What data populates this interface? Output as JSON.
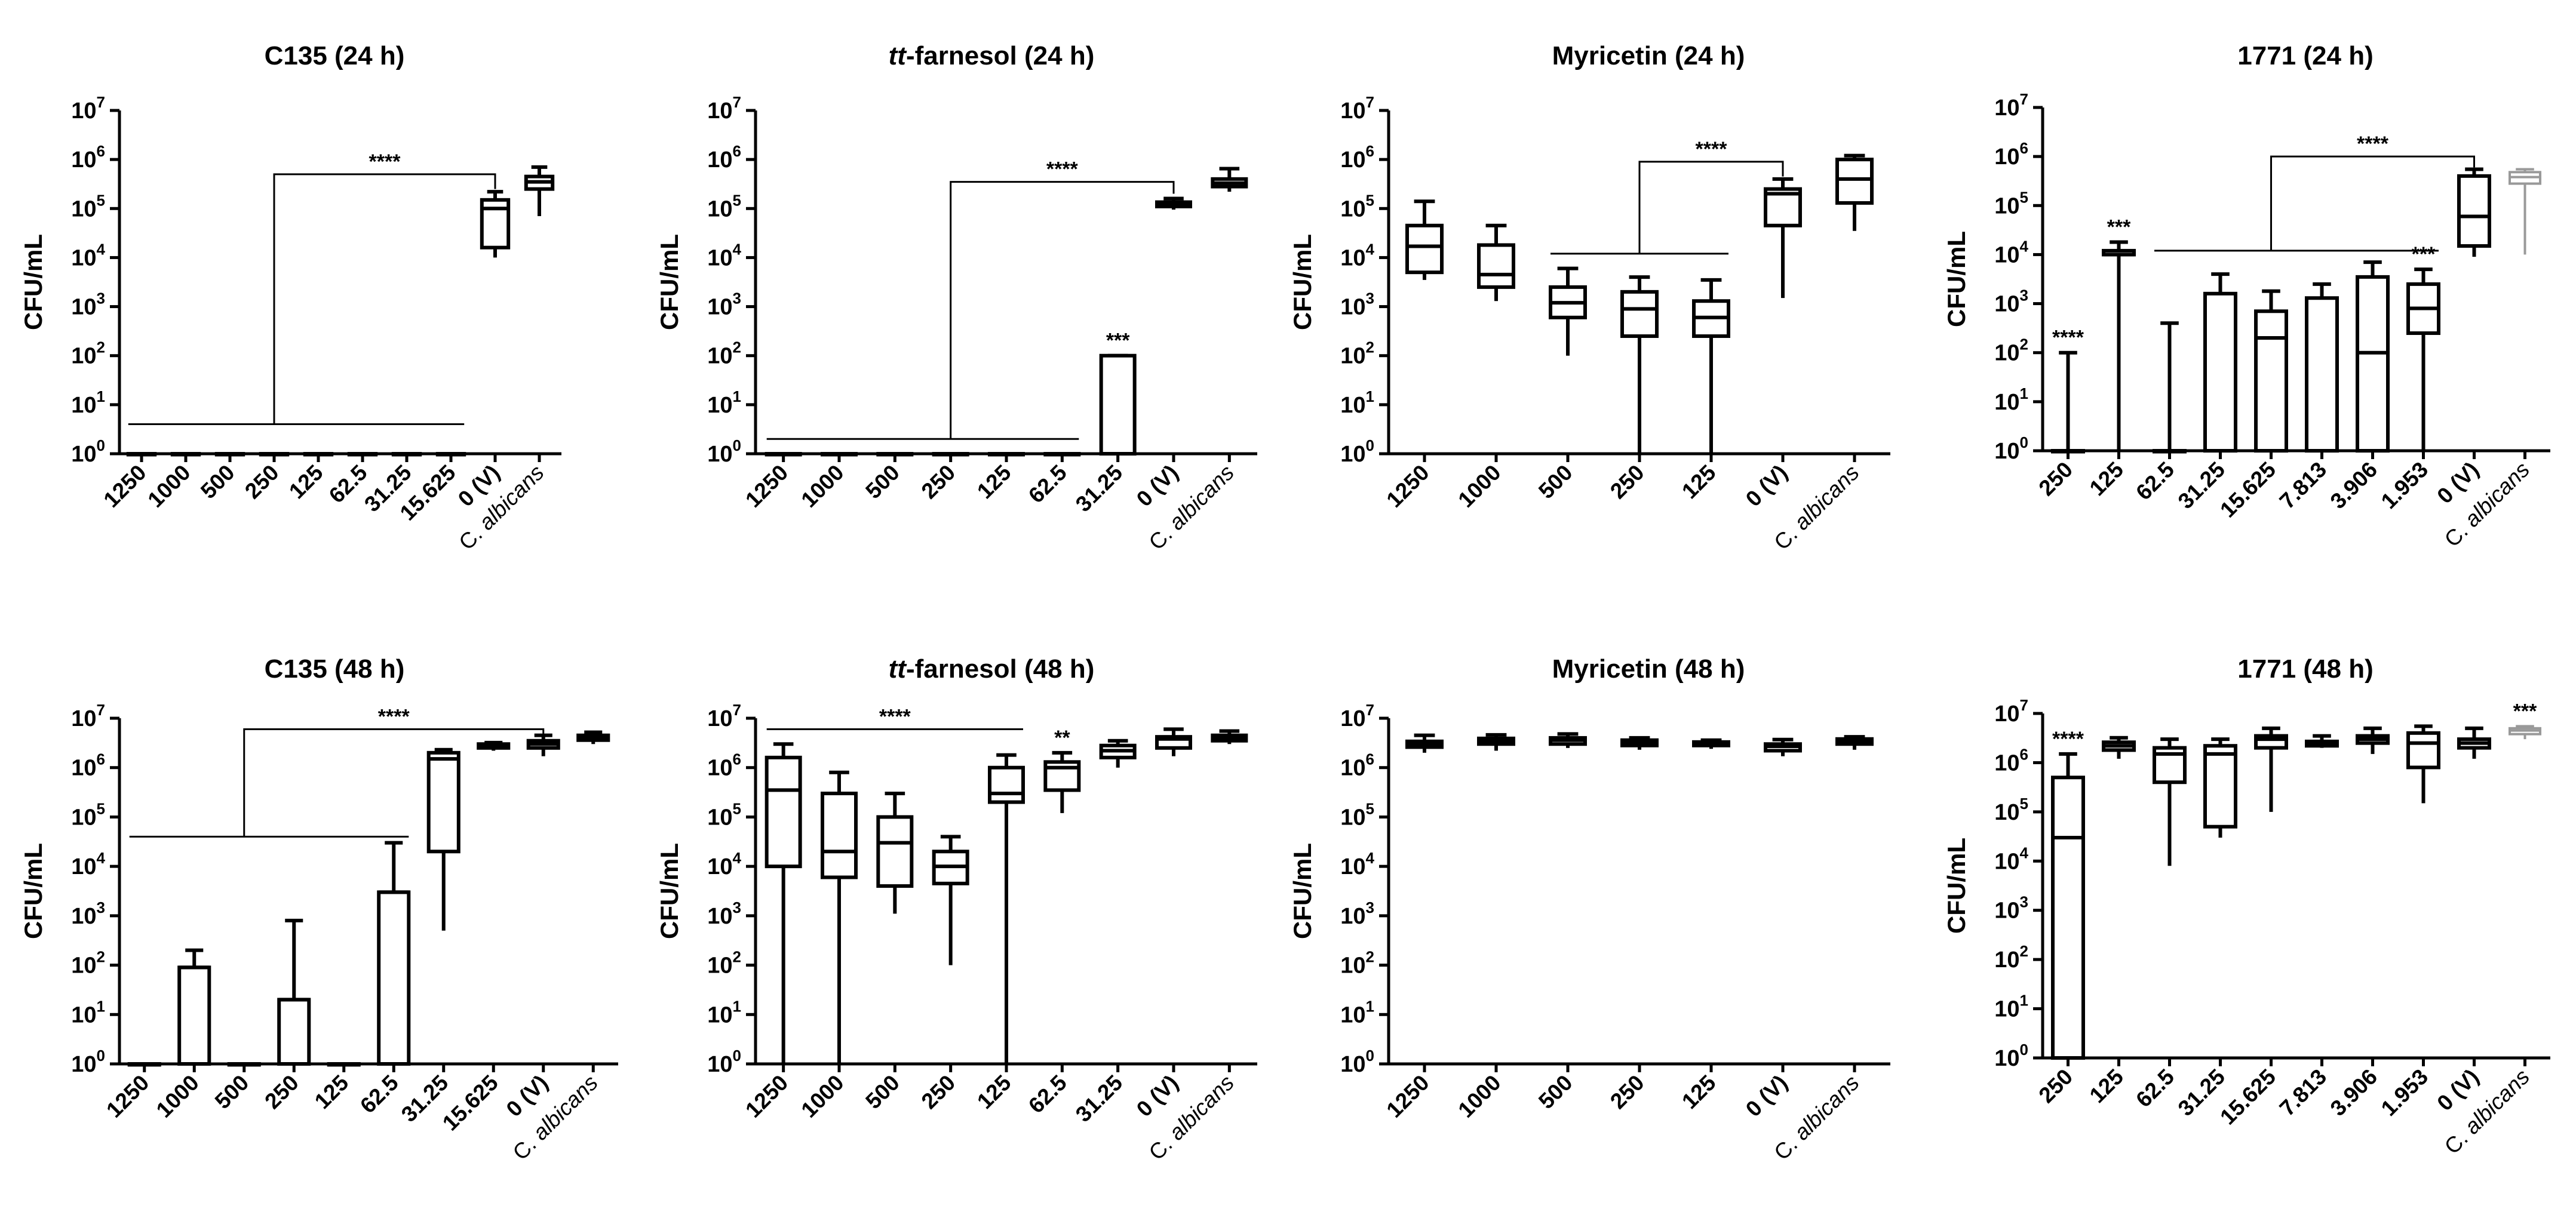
{
  "figure": {
    "y_axis_label": "CFU/mL",
    "y_tick_base": "10",
    "y_tick_exponents": [
      "0",
      "1",
      "2",
      "3",
      "4",
      "5",
      "6",
      "7"
    ],
    "colors": {
      "ink": "#000000",
      "control_alt": "#999999"
    }
  },
  "chart_data": [
    {
      "type": "box",
      "title_prefix": "",
      "title_italic": "",
      "title_suffix": "C135 (24 h)",
      "ylabel": "CFU/mL",
      "yscale": "log10",
      "ylim": [
        1,
        10000000
      ],
      "categories": [
        "1250",
        "1000",
        "500",
        "250",
        "125",
        "62.5",
        "31.25",
        "15.625",
        "0 (V)",
        "C. albicans"
      ],
      "boxes": [
        {
          "min": 1,
          "q1": 1,
          "med": 1,
          "q3": 1,
          "max": 1
        },
        {
          "min": 1,
          "q1": 1,
          "med": 1,
          "q3": 1,
          "max": 1
        },
        {
          "min": 1,
          "q1": 1,
          "med": 1,
          "q3": 1,
          "max": 1
        },
        {
          "min": 1,
          "q1": 1,
          "med": 1,
          "q3": 1,
          "max": 1
        },
        {
          "min": 1,
          "q1": 1,
          "med": 1,
          "q3": 1,
          "max": 1
        },
        {
          "min": 1,
          "q1": 1,
          "med": 1,
          "q3": 1,
          "max": 1
        },
        {
          "min": 1,
          "q1": 1,
          "med": 1,
          "q3": 1,
          "max": 1
        },
        {
          "min": 1,
          "q1": 1,
          "med": 1,
          "q3": 1,
          "max": 1
        },
        {
          "min": 10000,
          "q1": 16000,
          "med": 100000,
          "q3": 150000,
          "max": 220000
        },
        {
          "min": 70000,
          "q1": 250000,
          "med": 350000,
          "q3": 450000,
          "max": 700000
        }
      ],
      "annotations": [
        {
          "type": "span",
          "from": 0,
          "to": 7,
          "y": 4
        },
        {
          "type": "bracket",
          "anchor": 3,
          "anchor_y": 4,
          "target": 8,
          "y": 500000,
          "target_y": 250000,
          "label": "****"
        }
      ]
    },
    {
      "type": "box",
      "title_prefix": "",
      "title_italic": "tt",
      "title_suffix": "-farnesol (24 h)",
      "ylabel": "CFU/mL",
      "yscale": "log10",
      "ylim": [
        1,
        10000000
      ],
      "categories": [
        "1250",
        "1000",
        "500",
        "250",
        "125",
        "62.5",
        "31.25",
        "0 (V)",
        "C. albicans"
      ],
      "boxes": [
        {
          "min": 1,
          "q1": 1,
          "med": 1,
          "q3": 1,
          "max": 1
        },
        {
          "min": 1,
          "q1": 1,
          "med": 1,
          "q3": 1,
          "max": 1
        },
        {
          "min": 1,
          "q1": 1,
          "med": 1,
          "q3": 1,
          "max": 1
        },
        {
          "min": 1,
          "q1": 1,
          "med": 1,
          "q3": 1,
          "max": 1
        },
        {
          "min": 1,
          "q1": 1,
          "med": 1,
          "q3": 1,
          "max": 1
        },
        {
          "min": 1,
          "q1": 1,
          "med": 1,
          "q3": 1,
          "max": 1
        },
        {
          "min": 1,
          "q1": 1,
          "med": 1,
          "q3": 100,
          "max": 100,
          "label": "***"
        },
        {
          "min": 95000,
          "q1": 110000,
          "med": 120000,
          "q3": 135000,
          "max": 160000
        },
        {
          "min": 220000,
          "q1": 280000,
          "med": 330000,
          "q3": 400000,
          "max": 650000
        }
      ],
      "annotations": [
        {
          "type": "span",
          "from": 0,
          "to": 5,
          "y": 2
        },
        {
          "type": "bracket",
          "anchor": 3,
          "anchor_y": 2,
          "target": 7,
          "y": 350000,
          "target_y": 200000,
          "label": "****"
        }
      ]
    },
    {
      "type": "box",
      "title_prefix": "",
      "title_italic": "",
      "title_suffix": "Myricetin (24 h)",
      "ylabel": "CFU/mL",
      "yscale": "log10",
      "ylim": [
        1,
        10000000
      ],
      "categories": [
        "1250",
        "1000",
        "500",
        "250",
        "125",
        "0 (V)",
        "C. albicans"
      ],
      "boxes": [
        {
          "min": 3500,
          "q1": 5000,
          "med": 17000,
          "q3": 45000,
          "max": 140000
        },
        {
          "min": 1300,
          "q1": 2500,
          "med": 4500,
          "q3": 18000,
          "max": 45000
        },
        {
          "min": 100,
          "q1": 600,
          "med": 1200,
          "q3": 2500,
          "max": 6000
        },
        {
          "min": 1,
          "q1": 250,
          "med": 900,
          "q3": 2000,
          "max": 4000
        },
        {
          "min": 1,
          "q1": 250,
          "med": 600,
          "q3": 1300,
          "max": 3500
        },
        {
          "min": 1500,
          "q1": 45000,
          "med": 200000,
          "q3": 250000,
          "max": 400000
        },
        {
          "min": 35000,
          "q1": 130000,
          "med": 400000,
          "q3": 1000000,
          "max": 1200000
        }
      ],
      "annotations": [
        {
          "type": "span",
          "from": 2,
          "to": 4,
          "y": 12000
        },
        {
          "type": "bracket",
          "anchor": 3,
          "anchor_y": 12000,
          "target": 5,
          "y": 900000,
          "target_y": 450000,
          "label": "****"
        }
      ]
    },
    {
      "type": "box",
      "title_prefix": "",
      "title_italic": "",
      "title_suffix": "1771 (24 h)",
      "ylabel": "CFU/mL",
      "yscale": "log10",
      "ylim": [
        1,
        10000000
      ],
      "categories": [
        "250",
        "125",
        "62.5",
        "31.25",
        "15.625",
        "7.813",
        "3.906",
        "1.953",
        "0 (V)",
        "C. albicans"
      ],
      "boxes": [
        {
          "min": 1,
          "q1": 1,
          "med": 1,
          "q3": 1,
          "max": 100,
          "label": "****"
        },
        {
          "min": 1,
          "q1": 10000,
          "med": 10000,
          "q3": 12000,
          "max": 18000,
          "label": "***"
        },
        {
          "min": 1,
          "q1": 1,
          "med": 1,
          "q3": 1,
          "max": 400
        },
        {
          "min": 1,
          "q1": 1,
          "med": 1,
          "q3": 1600,
          "max": 4000
        },
        {
          "min": 1,
          "q1": 1,
          "med": 200,
          "q3": 700,
          "max": 1800
        },
        {
          "min": 1,
          "q1": 1,
          "med": 1,
          "q3": 1300,
          "max": 2500
        },
        {
          "min": 1,
          "q1": 1,
          "med": 100,
          "q3": 3500,
          "max": 7000
        },
        {
          "min": 1,
          "q1": 250,
          "med": 800,
          "q3": 2500,
          "max": 5000,
          "label": "***"
        },
        {
          "min": 9000,
          "q1": 15000,
          "med": 60000,
          "q3": 400000,
          "max": 550000
        },
        {
          "min": 10000,
          "q1": 280000,
          "med": 380000,
          "q3": 480000,
          "max": 550000,
          "color": "gray"
        }
      ],
      "annotations": [
        {
          "type": "span",
          "from": 2,
          "to": 7,
          "y": 12000
        },
        {
          "type": "bracket",
          "anchor": 4,
          "anchor_y": 12000,
          "target": 8,
          "y": 1000000,
          "target_y": 600000,
          "label": "****"
        }
      ]
    },
    {
      "type": "box",
      "title_prefix": "",
      "title_italic": "",
      "title_suffix": "C135 (48 h)",
      "ylabel": "CFU/mL",
      "yscale": "log10",
      "ylim": [
        1,
        10000000
      ],
      "categories": [
        "1250",
        "1000",
        "500",
        "250",
        "125",
        "62.5",
        "31.25",
        "15.625",
        "0 (V)",
        "C. albicans"
      ],
      "boxes": [
        {
          "min": 1,
          "q1": 1,
          "med": 1,
          "q3": 1,
          "max": 1
        },
        {
          "min": 1,
          "q1": 1,
          "med": 90,
          "q3": 90,
          "max": 200
        },
        {
          "min": 1,
          "q1": 1,
          "med": 1,
          "q3": 1,
          "max": 1
        },
        {
          "min": 1,
          "q1": 1,
          "med": 20,
          "q3": 20,
          "max": 800
        },
        {
          "min": 1,
          "q1": 1,
          "med": 1,
          "q3": 1,
          "max": 1
        },
        {
          "min": 1,
          "q1": 1,
          "med": 3000,
          "q3": 3000,
          "max": 30000
        },
        {
          "min": 500,
          "q1": 20000,
          "med": 1500000,
          "q3": 2000000,
          "max": 2300000
        },
        {
          "min": 2200000,
          "q1": 2500000,
          "med": 2700000,
          "q3": 3000000,
          "max": 3200000
        },
        {
          "min": 1700000,
          "q1": 2500000,
          "med": 3000000,
          "q3": 3500000,
          "max": 4500000
        },
        {
          "min": 3000000,
          "q1": 3600000,
          "med": 4000000,
          "q3": 4500000,
          "max": 5200000
        }
      ],
      "annotations": [
        {
          "type": "span",
          "from": 0,
          "to": 5,
          "y": 40000
        },
        {
          "type": "bracket",
          "anchor": 2,
          "anchor_y": 40000,
          "target": 8,
          "y": 6000000,
          "target_y": 4000000,
          "label": "****"
        }
      ]
    },
    {
      "type": "box",
      "title_prefix": "",
      "title_italic": "tt",
      "title_suffix": "-farnesol (48 h)",
      "ylabel": "CFU/mL",
      "yscale": "log10",
      "ylim": [
        1,
        10000000
      ],
      "categories": [
        "1250",
        "1000",
        "500",
        "250",
        "125",
        "62.5",
        "31.25",
        "0 (V)",
        "C. albicans"
      ],
      "boxes": [
        {
          "min": 1,
          "q1": 10000,
          "med": 350000,
          "q3": 1600000,
          "max": 3000000
        },
        {
          "min": 1,
          "q1": 6000,
          "med": 20000,
          "q3": 300000,
          "max": 800000
        },
        {
          "min": 1100,
          "q1": 4000,
          "med": 30000,
          "q3": 100000,
          "max": 300000
        },
        {
          "min": 100,
          "q1": 4500,
          "med": 10000,
          "q3": 20000,
          "max": 40000
        },
        {
          "min": 1,
          "q1": 200000,
          "med": 300000,
          "q3": 1000000,
          "max": 1800000
        },
        {
          "min": 120000,
          "q1": 350000,
          "med": 1000000,
          "q3": 1300000,
          "max": 2000000,
          "label": "**"
        },
        {
          "min": 1000000,
          "q1": 1600000,
          "med": 2200000,
          "q3": 2800000,
          "max": 3500000
        },
        {
          "min": 1700000,
          "q1": 2500000,
          "med": 3800000,
          "q3": 4200000,
          "max": 6000000
        },
        {
          "min": 3000000,
          "q1": 3500000,
          "med": 4000000,
          "q3": 4500000,
          "max": 5500000
        }
      ],
      "annotations": [
        {
          "type": "span",
          "from": 0,
          "to": 4,
          "y": 6000000,
          "label": "****"
        }
      ]
    },
    {
      "type": "box",
      "title_prefix": "",
      "title_italic": "",
      "title_suffix": "Myricetin (48 h)",
      "ylabel": "CFU/mL",
      "yscale": "log10",
      "ylim": [
        1,
        10000000
      ],
      "categories": [
        "1250",
        "1000",
        "500",
        "250",
        "125",
        "0 (V)",
        "C. albicans"
      ],
      "boxes": [
        {
          "min": 2000000,
          "q1": 2600000,
          "med": 3000000,
          "q3": 3400000,
          "max": 4500000
        },
        {
          "min": 2200000,
          "q1": 3000000,
          "med": 3500000,
          "q3": 3900000,
          "max": 4600000
        },
        {
          "min": 2500000,
          "q1": 3000000,
          "med": 3600000,
          "q3": 4000000,
          "max": 4800000
        },
        {
          "min": 2300000,
          "q1": 2800000,
          "med": 3200000,
          "q3": 3600000,
          "max": 4000000
        },
        {
          "min": 2400000,
          "q1": 2800000,
          "med": 3000000,
          "q3": 3300000,
          "max": 3600000
        },
        {
          "min": 1700000,
          "q1": 2200000,
          "med": 2700000,
          "q3": 3000000,
          "max": 3700000
        },
        {
          "min": 2300000,
          "q1": 3000000,
          "med": 3500000,
          "q3": 3800000,
          "max": 4200000
        }
      ],
      "annotations": []
    },
    {
      "type": "box",
      "title_prefix": "",
      "title_italic": "",
      "title_suffix": "1771 (48 h)",
      "ylabel": "CFU/mL",
      "yscale": "log10",
      "ylim": [
        1,
        10000000
      ],
      "categories": [
        "250",
        "125",
        "62.5",
        "31.25",
        "15.625",
        "7.813",
        "3.906",
        "1.953",
        "0 (V)",
        "C. albicans"
      ],
      "boxes": [
        {
          "min": 1,
          "q1": 1,
          "med": 30000,
          "q3": 500000,
          "max": 1500000,
          "label": "****"
        },
        {
          "min": 1200000,
          "q1": 1800000,
          "med": 2200000,
          "q3": 2600000,
          "max": 3200000
        },
        {
          "min": 8000,
          "q1": 400000,
          "med": 1500000,
          "q3": 2000000,
          "max": 3000000
        },
        {
          "min": 30000,
          "q1": 50000,
          "med": 1500000,
          "q3": 2200000,
          "max": 3000000
        },
        {
          "min": 100000,
          "q1": 2000000,
          "med": 3000000,
          "q3": 3500000,
          "max": 5000000
        },
        {
          "min": 2000000,
          "q1": 2200000,
          "med": 2500000,
          "q3": 2700000,
          "max": 3500000
        },
        {
          "min": 1500000,
          "q1": 2500000,
          "med": 3000000,
          "q3": 3500000,
          "max": 5000000
        },
        {
          "min": 150000,
          "q1": 800000,
          "med": 2500000,
          "q3": 4000000,
          "max": 5500000
        },
        {
          "min": 1200000,
          "q1": 2000000,
          "med": 2500000,
          "q3": 3000000,
          "max": 5000000
        },
        {
          "min": 3000000,
          "q1": 3800000,
          "med": 4500000,
          "q3": 5000000,
          "max": 5500000,
          "color": "gray",
          "label": "***"
        }
      ],
      "annotations": []
    }
  ]
}
